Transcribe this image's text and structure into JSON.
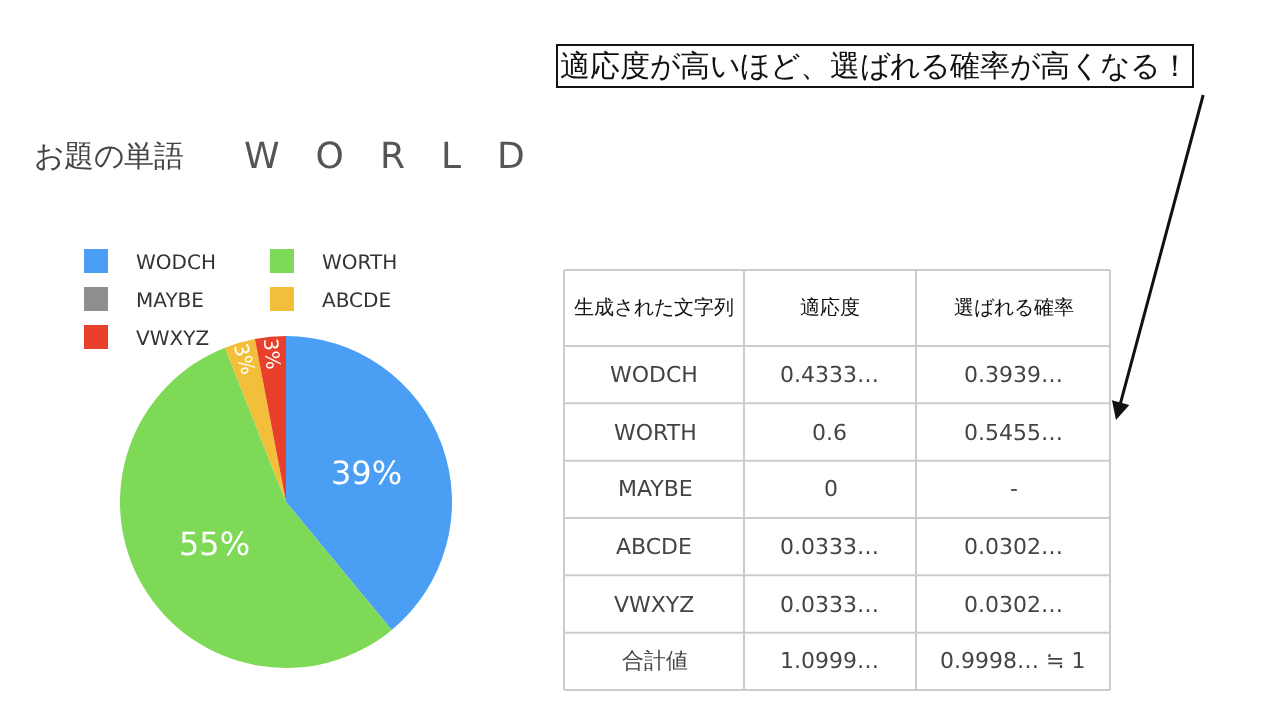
{
  "chart_data": [
    {
      "type": "pie",
      "title": "お題の単語",
      "subtitle": "W　O　R　L　D",
      "categories": [
        "WODCH",
        "WORTH",
        "MAYBE",
        "ABCDE",
        "VWXYZ"
      ],
      "values": [
        39,
        55,
        0,
        3,
        3
      ],
      "colors": [
        "#4a9ff5",
        "#7ed957",
        "#8e8e8e",
        "#f3bf3a",
        "#e8402a"
      ],
      "value_labels": [
        "39%",
        "55%",
        null,
        "3%",
        "3%"
      ],
      "legend": "top left"
    },
    {
      "type": "other",
      "title": "適応度が高いほど、選ばれる確率が高くなる！",
      "categories": [
        "生成された文字列",
        "適応度",
        "選ばれる確率"
      ],
      "cell_labels": [
        [
          "WODCH",
          "0.4333…",
          "0.3939…"
        ],
        [
          "WORTH",
          "0.6",
          "0.5455…"
        ],
        [
          "MAYBE",
          "0",
          "-"
        ],
        [
          "ABCDE",
          "0.0333…",
          "0.0302…"
        ],
        [
          "VWXYZ",
          "0.0333…",
          "0.0302…"
        ],
        [
          "合計値",
          "1.0999…",
          "0.9998… ≒ 1"
        ]
      ]
    }
  ]
}
